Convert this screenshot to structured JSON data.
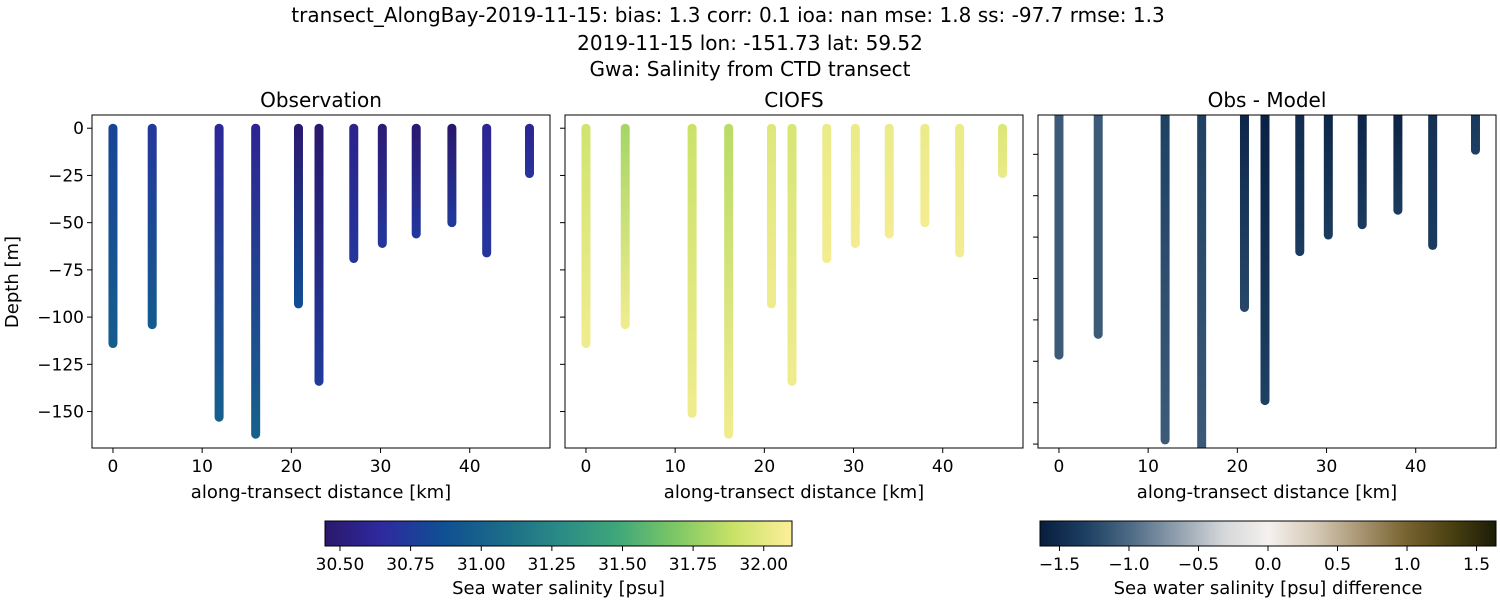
{
  "title_lines": [
    "transect_AlongBay-2019-11-15: bias: 1.3  corr: 0.1  ioa: nan  mse: 1.8  ss: -97.7  rmse: 1.3",
    "2019-11-15 lon: -151.73 lat: 59.52",
    "Gwa: Salinity from CTD transect"
  ],
  "chart_data": [
    {
      "type": "scatter",
      "title": "Observation",
      "xlabel": "along-transect distance [km]",
      "ylabel": "Depth [m]",
      "xlim": [
        -2.35,
        49.0
      ],
      "ylim": [
        -169.3,
        7
      ],
      "xticks": [
        "0",
        "10",
        "20",
        "30",
        "40"
      ],
      "yticks": [
        "0",
        "−25",
        "−50",
        "−75",
        "−100",
        "−125",
        "−150"
      ],
      "ytick_values": [
        0,
        -25,
        -50,
        -75,
        -100,
        -125,
        -150
      ],
      "colormap": "haline",
      "stations": [
        {
          "x": 0,
          "depth": 114,
          "top": 30.8,
          "bottom": 30.97
        },
        {
          "x": 4.4,
          "depth": 104,
          "top": 30.73,
          "bottom": 30.95
        },
        {
          "x": 11.9,
          "depth": 153,
          "top": 30.62,
          "bottom": 30.98
        },
        {
          "x": 16.0,
          "depth": 162,
          "top": 30.6,
          "bottom": 31.0
        },
        {
          "x": 20.8,
          "depth": 93,
          "top": 30.46,
          "bottom": 30.85
        },
        {
          "x": 23.1,
          "depth": 134,
          "top": 30.45,
          "bottom": 30.75
        },
        {
          "x": 27.0,
          "depth": 69,
          "top": 30.57,
          "bottom": 30.72
        },
        {
          "x": 30.2,
          "depth": 61,
          "top": 30.48,
          "bottom": 30.72
        },
        {
          "x": 34.0,
          "depth": 56,
          "top": 30.47,
          "bottom": 30.72
        },
        {
          "x": 38.0,
          "depth": 50,
          "top": 30.45,
          "bottom": 30.74
        },
        {
          "x": 41.9,
          "depth": 66,
          "top": 30.6,
          "bottom": 30.72
        },
        {
          "x": 46.7,
          "depth": 24,
          "top": 30.6,
          "bottom": 30.7
        }
      ]
    },
    {
      "type": "scatter",
      "title": "CIOFS",
      "xlabel": "along-transect distance [km]",
      "xlim": [
        -2.35,
        49.0
      ],
      "ylim": [
        -169.3,
        7
      ],
      "xticks": [
        "0",
        "10",
        "20",
        "30",
        "40"
      ],
      "ytick_values": [
        0,
        -25,
        -50,
        -75,
        -100,
        -125,
        -150
      ],
      "colormap": "haline",
      "stations": [
        {
          "x": 0,
          "depth": 114,
          "top": 31.92,
          "bottom": 32.05
        },
        {
          "x": 4.4,
          "depth": 104,
          "top": 31.8,
          "bottom": 32.05
        },
        {
          "x": 11.9,
          "depth": 151,
          "top": 31.9,
          "bottom": 32.05
        },
        {
          "x": 16.0,
          "depth": 162,
          "top": 31.85,
          "bottom": 32.05
        },
        {
          "x": 20.8,
          "depth": 93,
          "top": 31.98,
          "bottom": 32.05
        },
        {
          "x": 23.1,
          "depth": 134,
          "top": 31.95,
          "bottom": 32.05
        },
        {
          "x": 27.0,
          "depth": 69,
          "top": 32.03,
          "bottom": 32.06
        },
        {
          "x": 30.2,
          "depth": 61,
          "top": 32.03,
          "bottom": 32.06
        },
        {
          "x": 34.0,
          "depth": 56,
          "top": 32.03,
          "bottom": 32.06
        },
        {
          "x": 38.0,
          "depth": 50,
          "top": 32.03,
          "bottom": 32.06
        },
        {
          "x": 41.9,
          "depth": 66,
          "top": 32.03,
          "bottom": 32.06
        },
        {
          "x": 46.7,
          "depth": 24,
          "top": 31.97,
          "bottom": 32.02
        }
      ]
    },
    {
      "type": "scatter",
      "title": "Obs - Model",
      "xlabel": "along-transect distance [km]",
      "xlim": [
        -2.35,
        49.0
      ],
      "ylim": [
        -161.9,
        -1.0
      ],
      "xticks": [
        "0",
        "10",
        "20",
        "30",
        "40"
      ],
      "ytick_values": [
        -20,
        -40,
        -60,
        -80,
        -100,
        -120,
        -140,
        -160
      ],
      "colormap": "diff",
      "stations": [
        {
          "x": 0,
          "depth": 117,
          "top": -1.1,
          "bottom": -1.1
        },
        {
          "x": 4.4,
          "depth": 107,
          "top": -1.1,
          "bottom": -1.1
        },
        {
          "x": 11.9,
          "depth": 158,
          "top": -1.3,
          "bottom": -1.1
        },
        {
          "x": 16.0,
          "depth": 170,
          "top": -1.3,
          "bottom": -1.1
        },
        {
          "x": 20.8,
          "depth": 94,
          "top": -1.55,
          "bottom": -1.25
        },
        {
          "x": 23.1,
          "depth": 139,
          "top": -1.6,
          "bottom": -1.3
        },
        {
          "x": 27.0,
          "depth": 67,
          "top": -1.5,
          "bottom": -1.35
        },
        {
          "x": 30.2,
          "depth": 59,
          "top": -1.55,
          "bottom": -1.35
        },
        {
          "x": 34.0,
          "depth": 54,
          "top": -1.56,
          "bottom": -1.35
        },
        {
          "x": 38.0,
          "depth": 47,
          "top": -1.58,
          "bottom": -1.35
        },
        {
          "x": 41.9,
          "depth": 64,
          "top": -1.45,
          "bottom": -1.35
        },
        {
          "x": 46.7,
          "depth": 18,
          "top": -1.37,
          "bottom": -1.32
        }
      ]
    }
  ],
  "colorbars": [
    {
      "label": "Sea water salinity [psu]",
      "range": [
        30.447,
        32.1
      ],
      "ticks": [
        30.5,
        30.75,
        31.0,
        31.25,
        31.5,
        31.75,
        32.0
      ],
      "tick_labels": [
        "30.50",
        "30.75",
        "31.00",
        "31.25",
        "31.50",
        "31.75",
        "32.00"
      ],
      "colormap": "haline",
      "stops": [
        "#2a186c",
        "#2e2aa0",
        "#0f4f93",
        "#1a6a88",
        "#2a8a86",
        "#3ea77a",
        "#7dc765",
        "#c9e267",
        "#fdef9a"
      ]
    },
    {
      "label": "Sea water salinity [psu] difference",
      "range": [
        -1.64,
        1.64
      ],
      "ticks": [
        -1.5,
        -1.0,
        -0.5,
        0.0,
        0.5,
        1.0,
        1.5
      ],
      "tick_labels": [
        "−1.5",
        "−1.0",
        "−0.5",
        "0.0",
        "0.5",
        "1.0",
        "1.5"
      ],
      "colormap": "diff",
      "stops": [
        "#081d3f",
        "#1c3f62",
        "#4f6b85",
        "#909fae",
        "#d3d6d8",
        "#f5f1ee",
        "#d7cbb8",
        "#a99774",
        "#7a6432",
        "#4b4112",
        "#1b1d07"
      ]
    }
  ]
}
